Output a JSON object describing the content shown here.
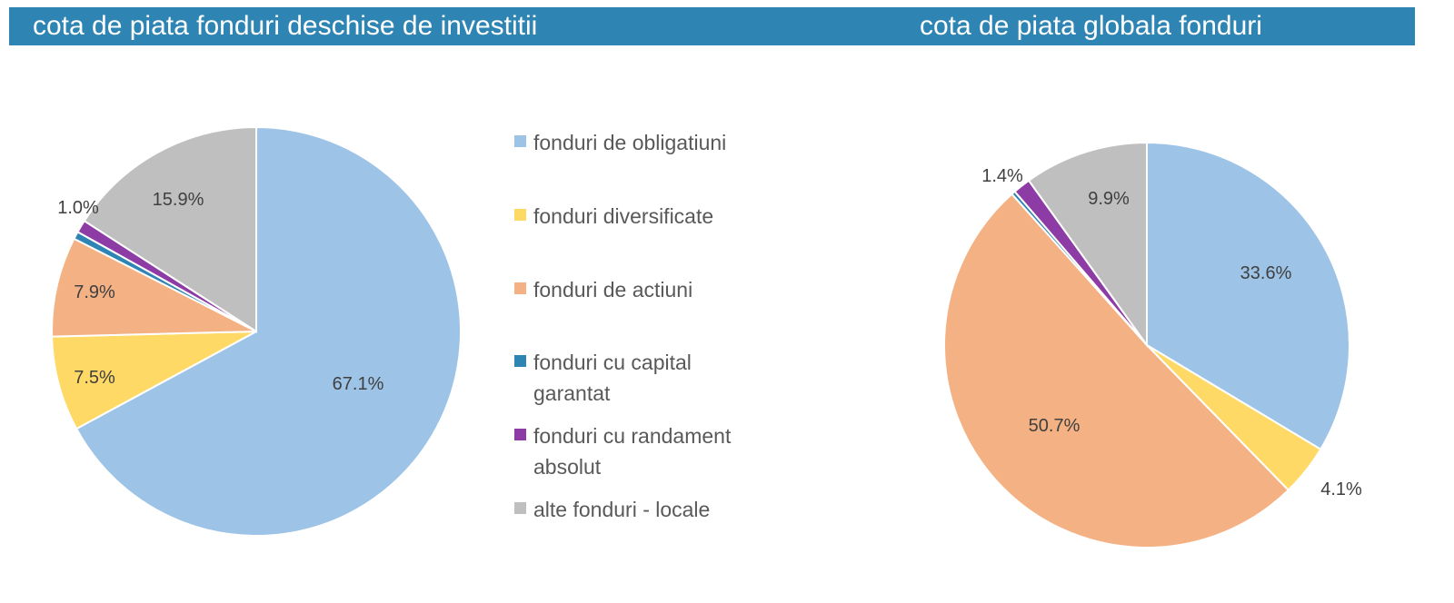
{
  "header": {
    "left_title": "cota de piata fonduri deschise de investitii",
    "right_title": "cota de piata globala fonduri"
  },
  "legend": {
    "items": [
      {
        "label": "fonduri de obligatiuni",
        "color": "#9dc3e6"
      },
      {
        "label": "fonduri diversificate",
        "color": "#ffd966"
      },
      {
        "label": "fonduri de actiuni",
        "color": "#f4b183"
      },
      {
        "label": "fonduri cu capital garantat",
        "color": "#2e85b4"
      },
      {
        "label": "fonduri cu randament absolut",
        "color": "#8e3ca5"
      },
      {
        "label": "alte fonduri - locale",
        "color": "#bfbfbf"
      }
    ]
  },
  "chart_data": [
    {
      "type": "pie",
      "title": "cota de piata fonduri deschise de investitii",
      "categories": [
        "fonduri de obligatiuni",
        "fonduri diversificate",
        "fonduri de actiuni",
        "fonduri cu capital garantat",
        "fonduri cu randament absolut",
        "alte fonduri - locale"
      ],
      "values": [
        67.1,
        7.5,
        7.9,
        0.6,
        1.0,
        15.9
      ],
      "data_labels": [
        "67.1%",
        "7.5%",
        "7.9%",
        "",
        "1.0%",
        "15.9%"
      ],
      "colors": [
        "#9dc3e6",
        "#ffd966",
        "#f4b183",
        "#2e85b4",
        "#8e3ca5",
        "#bfbfbf"
      ],
      "legend": "right"
    },
    {
      "type": "pie",
      "title": "cota de piata globala fonduri",
      "categories": [
        "fonduri de obligatiuni",
        "fonduri diversificate",
        "fonduri de actiuni",
        "fonduri cu capital garantat",
        "fonduri cu randament absolut",
        "alte fonduri - locale"
      ],
      "values": [
        33.6,
        4.1,
        50.7,
        0.3,
        1.4,
        9.9
      ],
      "data_labels": [
        "33.6%",
        "4.1%",
        "50.7%",
        "",
        "1.4%",
        "9.9%"
      ],
      "colors": [
        "#9dc3e6",
        "#ffd966",
        "#f4b183",
        "#2e85b4",
        "#8e3ca5",
        "#bfbfbf"
      ],
      "legend": "none"
    }
  ]
}
